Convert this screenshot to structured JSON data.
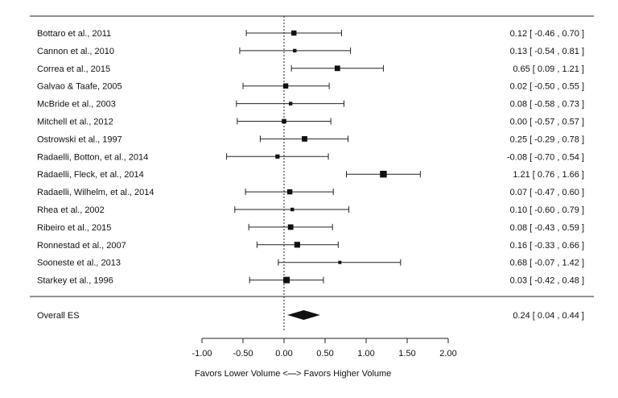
{
  "chart_data": {
    "type": "forest",
    "title": "",
    "xlabel_left": "Favors Lower Volume <---",
    "xlabel_right": "---> Favors Higher Volume",
    "xlim": [
      -1.0,
      2.0
    ],
    "xticks": [
      -1.0,
      -0.5,
      0.0,
      0.5,
      1.0,
      1.5,
      2.0
    ],
    "xtick_labels": [
      "-1.00",
      "-0.50",
      "0.00",
      "0.50",
      "1.00",
      "1.50",
      "2.00"
    ],
    "reference_line": 0.0,
    "studies": [
      {
        "label": "Bottaro et al., 2011",
        "es": 0.12,
        "lo": -0.46,
        "hi": 0.7,
        "text": "0.12 [ -0.46 , 0.70 ]",
        "weight": 0.55
      },
      {
        "label": "Cannon et al., 2010",
        "es": 0.13,
        "lo": -0.54,
        "hi": 0.81,
        "text": "0.13 [ -0.54 , 0.81 ]",
        "weight": 0.3
      },
      {
        "label": "Correa et al., 2015",
        "es": 0.65,
        "lo": 0.09,
        "hi": 1.21,
        "text": "0.65 [ 0.09 , 1.21 ]",
        "weight": 0.6
      },
      {
        "label": "Galvao & Taafe, 2005",
        "es": 0.02,
        "lo": -0.5,
        "hi": 0.55,
        "text": "0.02 [ -0.50 , 0.55 ]",
        "weight": 0.55
      },
      {
        "label": "McBride et al., 2003",
        "es": 0.08,
        "lo": -0.58,
        "hi": 0.73,
        "text": "0.08 [ -0.58 , 0.73 ]",
        "weight": 0.3
      },
      {
        "label": "Mitchell et al., 2012",
        "es": 0.0,
        "lo": -0.57,
        "hi": 0.57,
        "text": "0.00 [ -0.57 , 0.57 ]",
        "weight": 0.45
      },
      {
        "label": "Ostrowski et al., 1997",
        "es": 0.25,
        "lo": -0.29,
        "hi": 0.78,
        "text": "0.25 [ -0.29 , 0.78 ]",
        "weight": 0.6
      },
      {
        "label": "Radaelli, Botton, et al., 2014",
        "es": -0.08,
        "lo": -0.7,
        "hi": 0.54,
        "text": "-0.08 [ -0.70 , 0.54 ]",
        "weight": 0.4
      },
      {
        "label": "Radaelli, Fleck, et al., 2014",
        "es": 1.21,
        "lo": 0.76,
        "hi": 1.66,
        "text": "1.21 [ 0.76 , 1.66 ]",
        "weight": 0.8
      },
      {
        "label": "Radaelli, Wilhelm, et al., 2014",
        "es": 0.07,
        "lo": -0.47,
        "hi": 0.6,
        "text": "0.07 [ -0.47 , 0.60 ]",
        "weight": 0.55
      },
      {
        "label": "Rhea et al., 2002",
        "es": 0.1,
        "lo": -0.6,
        "hi": 0.79,
        "text": "0.10 [ -0.60 , 0.79 ]",
        "weight": 0.3
      },
      {
        "label": "Ribeiro et al., 2015",
        "es": 0.08,
        "lo": -0.43,
        "hi": 0.59,
        "text": "0.08 [ -0.43 , 0.59 ]",
        "weight": 0.6
      },
      {
        "label": "Ronnestad et al., 2007",
        "es": 0.16,
        "lo": -0.33,
        "hi": 0.66,
        "text": "0.16 [ -0.33 , 0.66 ]",
        "weight": 0.65
      },
      {
        "label": "Sooneste et al., 2013",
        "es": 0.68,
        "lo": -0.07,
        "hi": 1.42,
        "text": "0.68 [ -0.07 , 1.42 ]",
        "weight": 0.25
      },
      {
        "label": "Starkey et al., 1996",
        "es": 0.03,
        "lo": -0.42,
        "hi": 0.48,
        "text": "0.03 [ -0.42 , 0.48 ]",
        "weight": 0.75
      }
    ],
    "overall": {
      "label": "Overall ES",
      "es": 0.24,
      "lo": 0.04,
      "hi": 0.44,
      "text": "0.24 [ 0.04 , 0.44 ]"
    }
  }
}
